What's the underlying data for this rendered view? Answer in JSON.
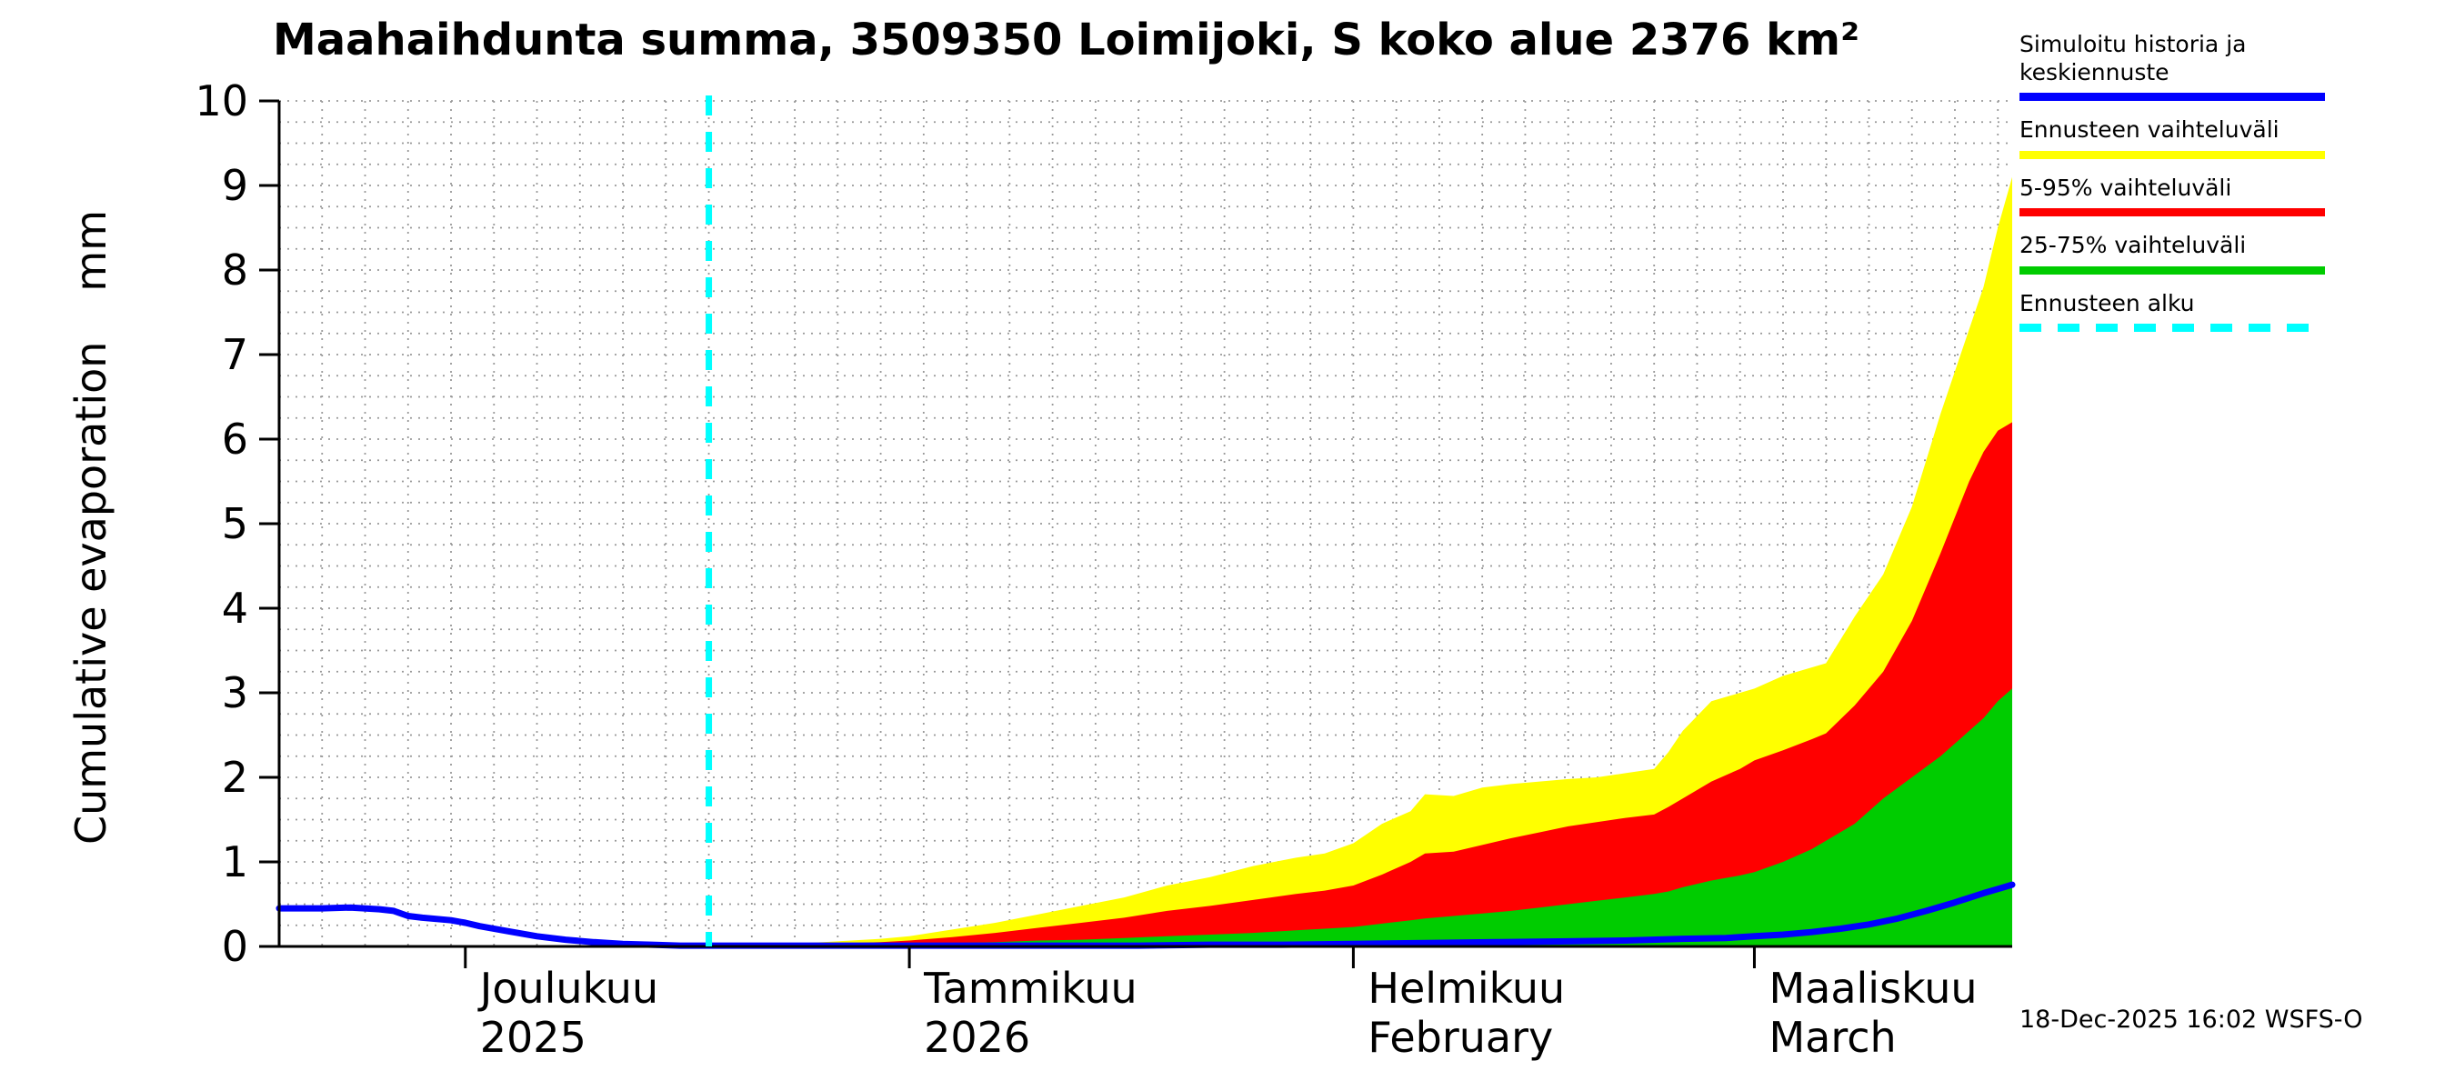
{
  "footer": {
    "timestamp": "18-Dec-2025 16:02 WSFS-O"
  },
  "legend": {
    "items": [
      {
        "label": "Simuloitu historia ja keskiennuste",
        "color": "#0000ff",
        "style": "solid"
      },
      {
        "label": "Ennusteen vaihteluväli",
        "color": "#ffff00",
        "style": "solid"
      },
      {
        "label": "5-95% vaihteluväli",
        "color": "#ff0000",
        "style": "solid"
      },
      {
        "label": "25-75% vaihteluväli",
        "color": "#00cc00",
        "style": "solid"
      },
      {
        "label": "Ennusteen alku",
        "color": "#00ffff",
        "style": "dashed"
      }
    ]
  },
  "chart_data": {
    "type": "area",
    "title": "Maahaihdunta summa, 3509350 Loimijoki, S koko alue 2376 km²",
    "ylabel": "Cumulative evaporation",
    "ylabel_unit": "mm",
    "ylim": [
      0,
      10
    ],
    "y_ticks": [
      0,
      1,
      2,
      3,
      4,
      5,
      6,
      7,
      8,
      9,
      10
    ],
    "grid": {
      "vertical_every_days": 3,
      "horizontal_every": 0.25
    },
    "x_axis": {
      "start_date": "2025-11-18",
      "end_date": "2026-03-19",
      "total_days": 121,
      "month_ticks": [
        {
          "day": 13,
          "label_top": "Joulukuu",
          "label_bottom": "2025"
        },
        {
          "day": 44,
          "label_top": "Tammikuu",
          "label_bottom": "2026"
        },
        {
          "day": 75,
          "label_top": "Helmikuu",
          "label_bottom": "February"
        },
        {
          "day": 103,
          "label_top": "Maaliskuu",
          "label_bottom": "March"
        }
      ]
    },
    "forecast_start_day": 30,
    "series": [
      {
        "name": "Ennusteen vaihteluväli",
        "type": "band",
        "color": "#ffff00",
        "x": [
          30,
          34,
          38,
          42,
          44,
          47,
          50,
          53,
          56,
          59,
          62,
          65,
          68,
          71,
          73,
          75,
          77,
          79,
          80,
          82,
          84,
          86,
          88,
          90,
          92,
          94,
          96,
          97,
          98,
          100,
          102,
          103,
          105,
          107,
          108,
          110,
          112,
          114,
          116,
          118,
          119,
          120,
          121
        ],
        "upper": [
          0.0,
          0.02,
          0.05,
          0.09,
          0.12,
          0.2,
          0.28,
          0.38,
          0.48,
          0.58,
          0.72,
          0.82,
          0.95,
          1.05,
          1.1,
          1.22,
          1.45,
          1.6,
          1.8,
          1.78,
          1.88,
          1.92,
          1.95,
          1.98,
          2.0,
          2.05,
          2.1,
          2.3,
          2.55,
          2.9,
          3.0,
          3.05,
          3.2,
          3.3,
          3.35,
          3.9,
          4.4,
          5.2,
          6.3,
          7.3,
          7.8,
          8.5,
          9.1
        ],
        "lower": 0
      },
      {
        "name": "5-95% vaihteluväli",
        "type": "band",
        "color": "#ff0000",
        "x": [
          30,
          34,
          38,
          42,
          44,
          47,
          50,
          53,
          56,
          59,
          62,
          65,
          68,
          71,
          73,
          75,
          77,
          79,
          80,
          82,
          84,
          86,
          88,
          90,
          92,
          94,
          96,
          97,
          98,
          100,
          102,
          103,
          105,
          107,
          108,
          110,
          112,
          114,
          116,
          118,
          119,
          120,
          121
        ],
        "upper": [
          0.0,
          0.01,
          0.03,
          0.05,
          0.07,
          0.11,
          0.16,
          0.22,
          0.28,
          0.34,
          0.42,
          0.48,
          0.55,
          0.62,
          0.66,
          0.72,
          0.85,
          1.0,
          1.1,
          1.12,
          1.2,
          1.28,
          1.35,
          1.42,
          1.47,
          1.52,
          1.56,
          1.65,
          1.75,
          1.95,
          2.1,
          2.2,
          2.32,
          2.45,
          2.52,
          2.85,
          3.25,
          3.85,
          4.65,
          5.5,
          5.85,
          6.1,
          6.2
        ],
        "lower": 0
      },
      {
        "name": "25-75% vaihteluväli",
        "type": "band",
        "color": "#00cc00",
        "x": [
          30,
          34,
          38,
          42,
          44,
          47,
          50,
          53,
          56,
          59,
          62,
          65,
          68,
          71,
          73,
          75,
          77,
          79,
          80,
          82,
          84,
          86,
          88,
          90,
          92,
          94,
          96,
          97,
          98,
          100,
          102,
          103,
          105,
          107,
          108,
          110,
          112,
          114,
          116,
          118,
          119,
          120,
          121
        ],
        "upper": [
          0.0,
          0.0,
          0.01,
          0.02,
          0.03,
          0.04,
          0.05,
          0.07,
          0.08,
          0.1,
          0.12,
          0.14,
          0.16,
          0.19,
          0.21,
          0.23,
          0.27,
          0.31,
          0.33,
          0.36,
          0.39,
          0.42,
          0.46,
          0.5,
          0.54,
          0.58,
          0.62,
          0.65,
          0.7,
          0.78,
          0.84,
          0.88,
          1.0,
          1.15,
          1.25,
          1.45,
          1.75,
          2.0,
          2.25,
          2.55,
          2.7,
          2.9,
          3.05
        ],
        "lower": 0
      },
      {
        "name": "Simuloitu historia ja keskiennuste",
        "type": "line",
        "color": "#0000ff",
        "x": [
          0,
          3,
          5,
          7,
          8,
          9,
          10,
          12,
          13,
          14,
          16,
          18,
          20,
          22,
          24,
          26,
          28,
          30,
          40,
          50,
          60,
          65,
          70,
          75,
          80,
          85,
          90,
          94,
          98,
          101,
          103,
          105,
          107,
          109,
          111,
          113,
          115,
          117,
          119,
          120,
          121
        ],
        "y": [
          0.45,
          0.45,
          0.46,
          0.44,
          0.42,
          0.36,
          0.34,
          0.31,
          0.28,
          0.24,
          0.18,
          0.12,
          0.08,
          0.05,
          0.03,
          0.02,
          0.01,
          0.01,
          0.01,
          0.01,
          0.01,
          0.02,
          0.02,
          0.03,
          0.04,
          0.05,
          0.06,
          0.07,
          0.09,
          0.1,
          0.12,
          0.14,
          0.17,
          0.21,
          0.26,
          0.33,
          0.42,
          0.52,
          0.63,
          0.68,
          0.73
        ]
      }
    ],
    "forecast_line_color": "#00ffff"
  }
}
